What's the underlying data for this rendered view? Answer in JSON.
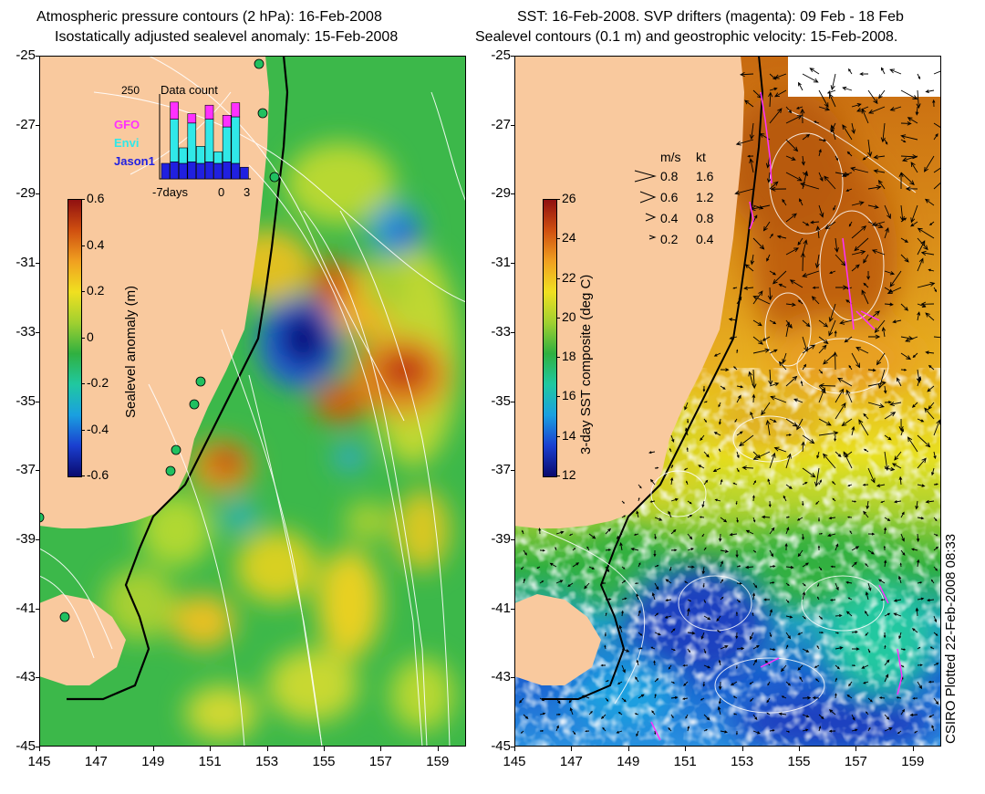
{
  "left_panel": {
    "title_line1": "Atmospheric pressure contours (2 hPa): 16-Feb-2008",
    "title_line2": "Isostatically adjusted sealevel anomaly: 15-Feb-2008",
    "colorbar": {
      "title": "Sealevel anomaly (m)",
      "ticks": [
        "0.6",
        "0.4",
        "0.2",
        "0",
        "-0.2",
        "-0.4",
        "-0.6"
      ],
      "colors": [
        "#0a0a6e",
        "#1a3fd0",
        "#1aa0e0",
        "#20c8a0",
        "#30b040",
        "#a0d030",
        "#f0e020",
        "#f0a020",
        "#d05010",
        "#901010"
      ]
    },
    "inset": {
      "title": "Data count",
      "max_label": "250",
      "x_labels": [
        "-7days",
        "0",
        "3"
      ],
      "satellites": [
        {
          "name": "GFO",
          "color": "#ff30ff"
        },
        {
          "name": "Envi",
          "color": "#30e8e8"
        },
        {
          "name": "Jason1",
          "color": "#2020e0"
        }
      ],
      "bars": [
        {
          "jason": 0.2,
          "envi": 0.0,
          "gfo": 0.0
        },
        {
          "jason": 0.22,
          "envi": 0.55,
          "gfo": 0.22
        },
        {
          "jason": 0.2,
          "envi": 0.2,
          "gfo": 0.0
        },
        {
          "jason": 0.22,
          "envi": 0.5,
          "gfo": 0.12
        },
        {
          "jason": 0.2,
          "envi": 0.22,
          "gfo": 0.0
        },
        {
          "jason": 0.22,
          "envi": 0.55,
          "gfo": 0.18
        },
        {
          "jason": 0.2,
          "envi": 0.15,
          "gfo": 0.0
        },
        {
          "jason": 0.22,
          "envi": 0.45,
          "gfo": 0.15
        },
        {
          "jason": 0.2,
          "envi": 0.6,
          "gfo": 0.18
        },
        {
          "jason": 0.15,
          "envi": 0.0,
          "gfo": 0.0
        }
      ]
    }
  },
  "right_panel": {
    "title_line1": "SST: 16-Feb-2008. SVP drifters (magenta): 09 Feb - 18 Feb",
    "title_line2": "Sealevel contours (0.1 m) and geostrophic velocity: 15-Feb-2008.",
    "colorbar": {
      "title": "3-day SST composite (deg C)",
      "ticks": [
        "26",
        "24",
        "22",
        "20",
        "18",
        "16",
        "14",
        "12"
      ],
      "colors": [
        "#0a0a6e",
        "#1a3fd0",
        "#1aa0e0",
        "#20c8a0",
        "#30b040",
        "#a0d030",
        "#f0e020",
        "#f0a020",
        "#d05010",
        "#901010"
      ]
    },
    "velocity_legend": {
      "header_ms": "m/s",
      "header_kt": "kt",
      "rows": [
        {
          "ms": "0.8",
          "kt": "1.6"
        },
        {
          "ms": "0.6",
          "kt": "1.2"
        },
        {
          "ms": "0.4",
          "kt": "0.8"
        },
        {
          "ms": "0.2",
          "kt": "0.4"
        }
      ]
    },
    "credit": "CSIRO Plotted 22-Feb-2008 08:33"
  },
  "axes": {
    "y_ticks": [
      "-25",
      "-27",
      "-29",
      "-31",
      "-33",
      "-35",
      "-37",
      "-39",
      "-41",
      "-43",
      "-45"
    ],
    "x_ticks": [
      "145",
      "147",
      "149",
      "151",
      "153",
      "155",
      "157",
      "159"
    ],
    "lat_range": [
      -45,
      -25
    ],
    "lon_range": [
      145,
      160
    ]
  },
  "colors": {
    "land": "#f9c99e",
    "ocean_green": "#30b040",
    "magenta": "#ff30ff",
    "tide_gauge": "#20c060"
  }
}
